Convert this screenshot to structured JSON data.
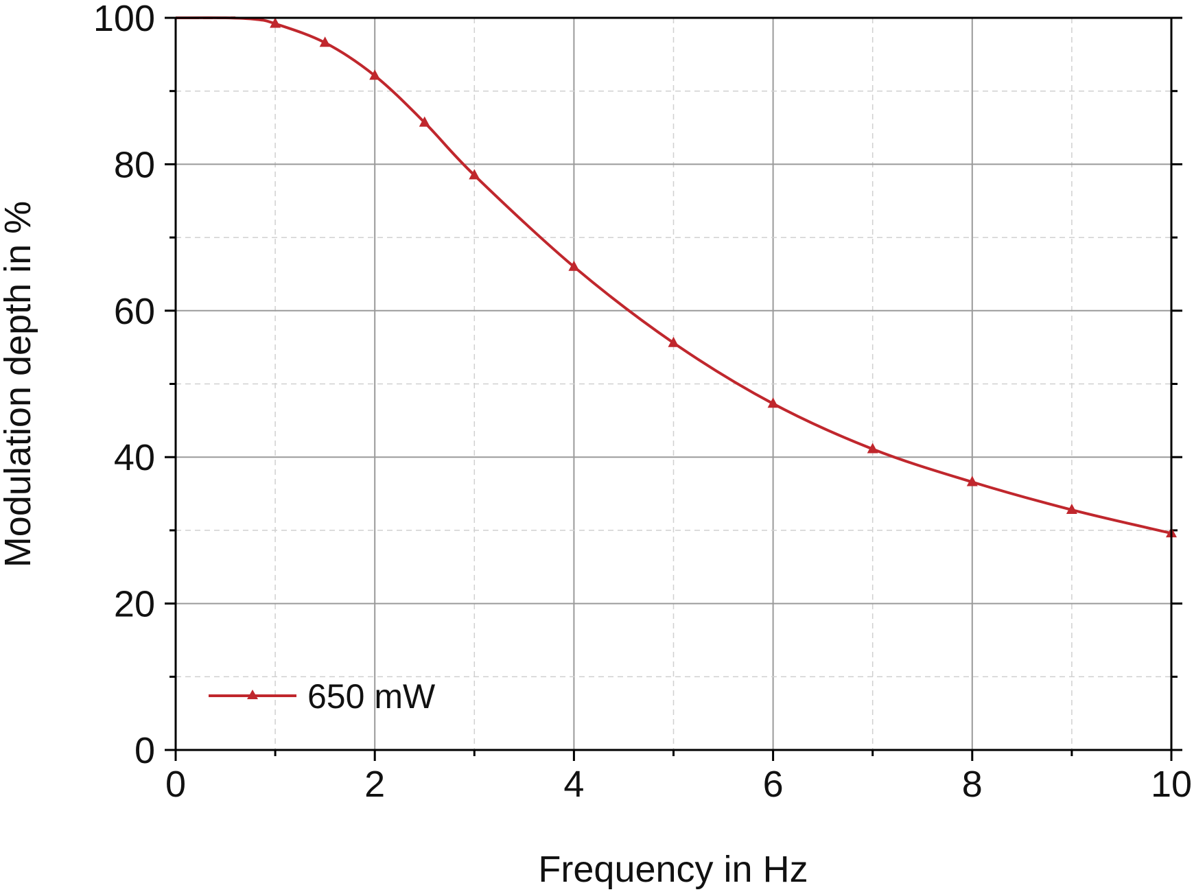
{
  "chart_data": {
    "type": "line",
    "title": "",
    "xlabel": "Frequency in Hz",
    "ylabel": "Modulation depth in %",
    "xlim": [
      0,
      10
    ],
    "ylim": [
      0,
      100
    ],
    "x_ticks": [
      "0",
      "2",
      "4",
      "6",
      "8",
      "10"
    ],
    "y_ticks": [
      "0",
      "20",
      "40",
      "60",
      "80",
      "100"
    ],
    "grid": true,
    "legend_position": "bottom-left",
    "series": [
      {
        "name": "650 mW",
        "color": "#c0272d",
        "marker": "triangle",
        "x": [
          0,
          0.5,
          0.8,
          1.0,
          1.5,
          2.0,
          2.5,
          3.0,
          4.0,
          5.0,
          6.0,
          7.0,
          8.0,
          9.0,
          10.0
        ],
        "y": [
          100,
          100,
          99.8,
          99.2,
          96.6,
          92.1,
          85.7,
          78.5,
          66.0,
          55.6,
          47.3,
          41.1,
          36.6,
          32.8,
          29.6
        ],
        "marker_x": [
          1.0,
          1.5,
          2.0,
          2.5,
          3.0,
          4.0,
          5.0,
          6.0,
          7.0,
          8.0,
          9.0,
          10.0
        ]
      }
    ]
  }
}
